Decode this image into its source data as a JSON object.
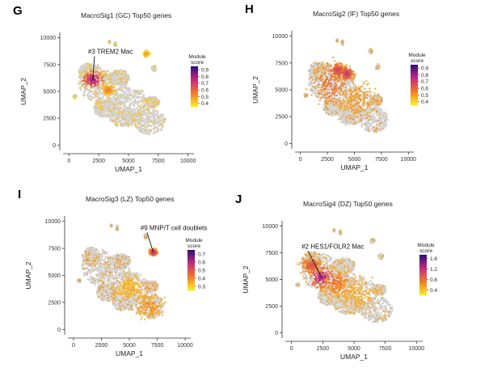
{
  "figure": {
    "background": "#ffffff"
  },
  "palette": {
    "grey_cells": "#d3d3d3",
    "score_low": "#fde725",
    "score_mid": "#f07a2a",
    "score_high_mid": "#c42c7e",
    "score_high": "#32107c"
  },
  "chart_data": [
    {
      "panel_letter": "G",
      "type": "scatter",
      "title": "MacroSig1 (GC) Top50 genes",
      "xlabel": "UMAP_1",
      "ylabel": "UMAP_2",
      "xticks": [
        0,
        2500,
        5000,
        7500,
        10000
      ],
      "yticks": [
        0,
        2500,
        5000,
        7500,
        10000
      ],
      "xlim": [
        -500,
        10500
      ],
      "ylim": [
        -500,
        10500
      ],
      "legend": {
        "title": "Module score",
        "ticks": [
          0.4,
          0.5,
          0.6,
          0.7,
          0.8,
          0.9
        ],
        "range": [
          0.35,
          0.95
        ],
        "position": "right"
      },
      "annotation": {
        "text": "#3 TREM2 Mac",
        "point": [
          2000,
          6100
        ],
        "label_at": [
          1600,
          8500
        ]
      },
      "hotspots": [
        {
          "x": 2000,
          "y": 6100,
          "spread": 750,
          "score": 0.85
        },
        {
          "x": 3300,
          "y": 5100,
          "spread": 400,
          "score": 0.55
        },
        {
          "x": 6500,
          "y": 8500,
          "spread": 180,
          "score": 0.5
        }
      ],
      "background_score": 0.38
    },
    {
      "panel_letter": "H",
      "type": "scatter",
      "title": "MacroSig2 (IF) Top50 genes",
      "xlabel": "UMAP_1",
      "ylabel": "UMAP_2",
      "xticks": [
        0,
        2500,
        5000,
        7500,
        10000
      ],
      "yticks": [
        0,
        2500,
        5000,
        7500,
        10000
      ],
      "xlim": [
        -500,
        10500
      ],
      "ylim": [
        -500,
        10500
      ],
      "legend": {
        "title": "Module score",
        "ticks": [
          0.4,
          0.5,
          0.6,
          0.7,
          0.8,
          0.9
        ],
        "range": [
          0.35,
          0.95
        ],
        "position": "right"
      },
      "annotation": null,
      "hotspots": [
        {
          "x": 2800,
          "y": 5600,
          "spread": 1500,
          "score": 0.6
        },
        {
          "x": 5300,
          "y": 4000,
          "spread": 1300,
          "score": 0.5
        },
        {
          "x": 3500,
          "y": 6800,
          "spread": 600,
          "score": 0.7
        },
        {
          "x": 4300,
          "y": 6500,
          "spread": 500,
          "score": 0.75
        }
      ],
      "background_score": 0.45
    },
    {
      "panel_letter": "I",
      "type": "scatter",
      "title": "MacroSig3 (LZ) Top50 genes",
      "xlabel": "UMAP_1",
      "ylabel": "UMAP_2",
      "xticks": [
        0,
        2500,
        5000,
        7500,
        10000
      ],
      "yticks": [
        0,
        2500,
        5000,
        7500,
        10000
      ],
      "xlim": [
        -500,
        10500
      ],
      "ylim": [
        -500,
        10500
      ],
      "legend": {
        "title": "Module score",
        "ticks": [
          0.3,
          0.4,
          0.5,
          0.6,
          0.7
        ],
        "range": [
          0.25,
          0.75
        ],
        "position": "right"
      },
      "annotation": {
        "text": "#9 MNP/T cell doublets",
        "point": [
          7150,
          7150
        ],
        "label_at": [
          6000,
          9200
        ]
      },
      "hotspots": [
        {
          "x": 7150,
          "y": 7150,
          "spread": 280,
          "score": 0.62
        },
        {
          "x": 6800,
          "y": 2200,
          "spread": 1000,
          "score": 0.38
        },
        {
          "x": 5000,
          "y": 3800,
          "spread": 900,
          "score": 0.33
        }
      ],
      "background_score": 0.32
    },
    {
      "panel_letter": "J",
      "type": "scatter",
      "title": "MacroSig4 (DZ) Top50 genes",
      "xlabel": "UMAP_1",
      "ylabel": "UMAP_2",
      "xticks": [
        0,
        2500,
        5000,
        7500,
        10000
      ],
      "yticks": [
        0,
        2500,
        5000,
        7500,
        10000
      ],
      "xlim": [
        -500,
        10500
      ],
      "ylim": [
        -500,
        10500
      ],
      "legend": {
        "title": "Module score",
        "ticks": [
          0.4,
          0.8,
          1.2,
          1.6
        ],
        "range": [
          0.2,
          1.75
        ],
        "position": "right"
      },
      "annotation": {
        "text": "#2 HES1/FOLR2 Mac",
        "point": [
          2400,
          5200
        ],
        "label_at": [
          800,
          7900
        ]
      },
      "hotspots": [
        {
          "x": 2400,
          "y": 5200,
          "spread": 850,
          "score": 1.4
        },
        {
          "x": 1600,
          "y": 6300,
          "spread": 700,
          "score": 1.0
        },
        {
          "x": 3600,
          "y": 4600,
          "spread": 1000,
          "score": 0.8
        },
        {
          "x": 5200,
          "y": 3600,
          "spread": 1200,
          "score": 0.5
        }
      ],
      "background_score": 0.45
    }
  ]
}
